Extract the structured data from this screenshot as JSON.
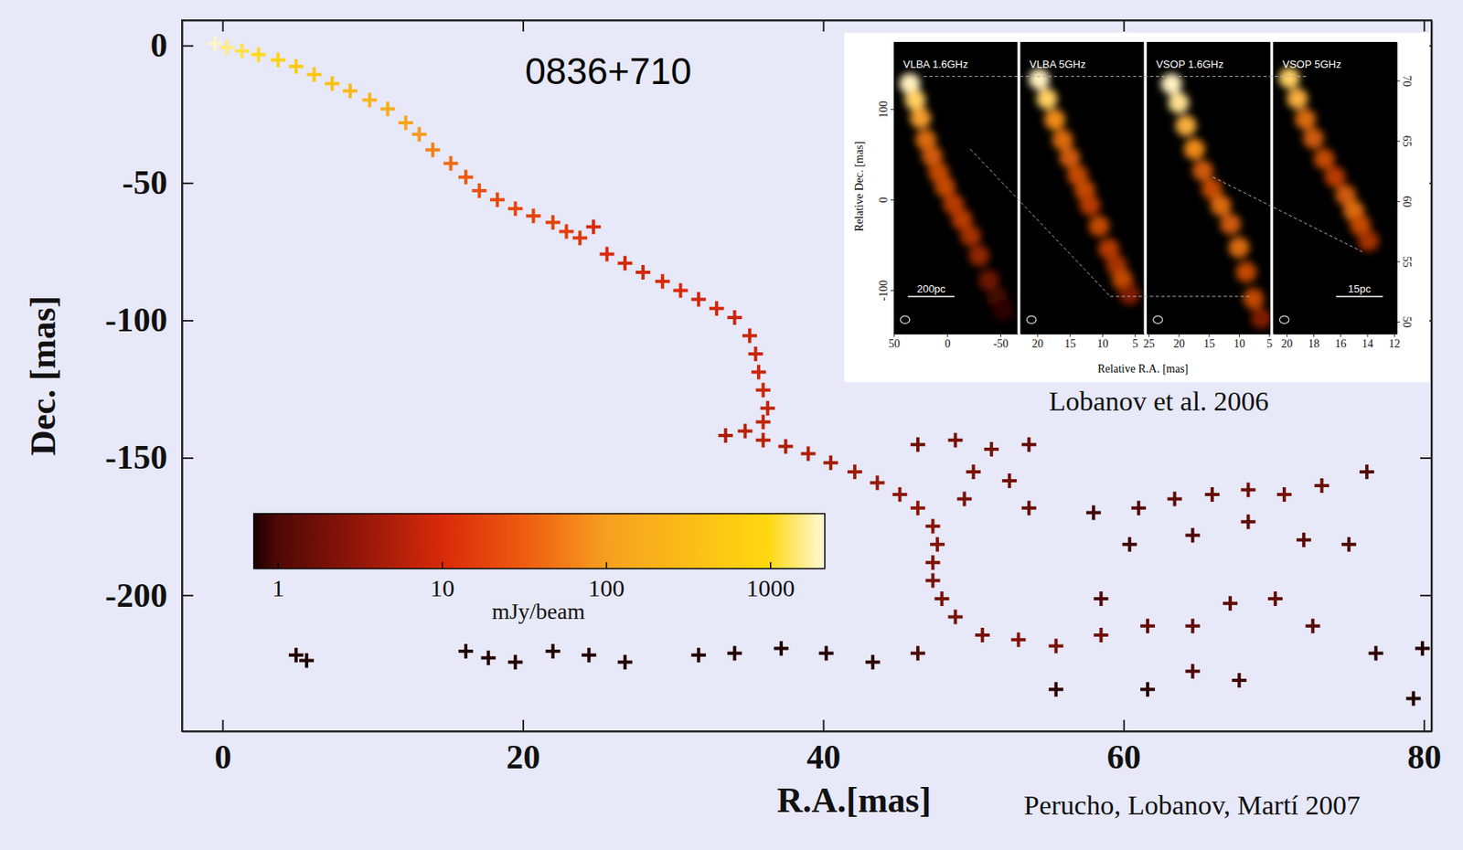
{
  "chart_data": [
    {
      "type": "scatter",
      "title": "0836+710",
      "x_label": "R.A.[mas]",
      "y_label": "Dec. [mas]",
      "marker": "plus",
      "xlim": [
        -2.7,
        80.5
      ],
      "xticks": [
        0,
        20,
        40,
        60,
        80
      ],
      "ylim": [
        -249.5,
        9.2
      ],
      "yticks": [
        0,
        -50,
        -100,
        -150,
        -200
      ],
      "x": [
        -0.5,
        0.3,
        1.3,
        2.4,
        3.7,
        4.9,
        6.1,
        7.3,
        8.5,
        9.8,
        11,
        12.2,
        13.1,
        14,
        15.2,
        16.2,
        17.1,
        18.3,
        19.5,
        20.7,
        22,
        22.9,
        23.8,
        24.7,
        25.6,
        26.8,
        28,
        29.3,
        30.5,
        31.7,
        32.9,
        34.1,
        35.1,
        35.5,
        35.7,
        36,
        36.3,
        36,
        34.8,
        33.5,
        36,
        37.5,
        39,
        40.5,
        42.1,
        43.6,
        45.1,
        46.3,
        47.3,
        47.6,
        47.3,
        47.3,
        47.9,
        48.8,
        46.3,
        48.8,
        51.2,
        53.7,
        50,
        52.4,
        49.4,
        53.7,
        58,
        60.4,
        61,
        63.4,
        65.9,
        68.3,
        70.7,
        73.2,
        76.2,
        64.6,
        68.3,
        72,
        75,
        50.6,
        53,
        55.5,
        58.5,
        61.6,
        64.6,
        67.1,
        70.1,
        72.6,
        58.5,
        64.6,
        61.6,
        67.7,
        55.5,
        46.3,
        43.3,
        40.2,
        37.2,
        34.1,
        31.7,
        76.8,
        79.9,
        79.3,
        4.9,
        5.6,
        16.2,
        17.7,
        19.5,
        22,
        24.4,
        26.8
      ],
      "values": [
        0.7,
        -0.7,
        -2,
        -3.3,
        -5.3,
        -7.6,
        -10.6,
        -13.9,
        -16.5,
        -19.8,
        -23.1,
        -28.1,
        -32.3,
        -38,
        -42.9,
        -47.9,
        -52.8,
        -56.1,
        -59.4,
        -62,
        -64.4,
        -67.7,
        -70,
        -66,
        -75.9,
        -79.2,
        -82.5,
        -85.8,
        -89.1,
        -92.4,
        -95.7,
        -99,
        -105.6,
        -112.2,
        -118.8,
        -125.4,
        -132,
        -137,
        -140.3,
        -141.9,
        -143.6,
        -145.9,
        -148.5,
        -151.8,
        -155.1,
        -159.1,
        -163.4,
        -168.3,
        -174.9,
        -181.5,
        -188.1,
        -194.7,
        -201.3,
        -207.9,
        -145.2,
        -143.6,
        -146.9,
        -145.2,
        -155.1,
        -158.4,
        -165,
        -168.3,
        -170,
        -181.5,
        -168.3,
        -165,
        -163.4,
        -161.7,
        -163.4,
        -160.1,
        -155.1,
        -178.2,
        -173.3,
        -179.9,
        -181.5,
        -214.5,
        -216.2,
        -218.5,
        -214.5,
        -211.2,
        -211.2,
        -203,
        -201.3,
        -211.2,
        -201.3,
        -227.7,
        -234.3,
        -231,
        -234.3,
        -221.1,
        -224.4,
        -221.1,
        -219.4,
        -221.1,
        -221.8,
        -221.1,
        -219.4,
        -237.6,
        -221.8,
        -223.8,
        -220.4,
        -222.8,
        -224.4,
        -220.4,
        -221.8,
        -224.4
      ],
      "flux": [
        2000,
        1500,
        1200,
        1000,
        800,
        600,
        450,
        350,
        280,
        220,
        170,
        120,
        90,
        60,
        40,
        30,
        25,
        22,
        20,
        18,
        18,
        16,
        14,
        10,
        10,
        9,
        9,
        10,
        10,
        9,
        9,
        8,
        8,
        8,
        8,
        8,
        7,
        7,
        6,
        5,
        6,
        5,
        5,
        4,
        4,
        3.5,
        3,
        3,
        2.5,
        2.5,
        2.2,
        2,
        2,
        2,
        1.8,
        2,
        2,
        1.5,
        2.2,
        1.8,
        2,
        1.5,
        0.9,
        0.9,
        1.1,
        1.3,
        1.5,
        1.8,
        2,
        1.6,
        1.1,
        1,
        1.4,
        1.2,
        1,
        2,
        2.5,
        2.2,
        1.8,
        1.5,
        1.3,
        1.2,
        1.5,
        1.2,
        1,
        1,
        0.8,
        0.9,
        0.8,
        1,
        0.8,
        0.75,
        0.75,
        0.75,
        0.75,
        0.8,
        0.75,
        0.75,
        0.75,
        0.75,
        0.75,
        0.75,
        0.75,
        0.75,
        0.75,
        0.75
      ],
      "colorbar": {
        "label": "mJy/beam",
        "lim": [
          0.71,
          2140
        ],
        "ticks": [
          1,
          10,
          100,
          1000
        ],
        "log": true
      },
      "annotations": [
        "Perucho, Lobanov, Martí 2007"
      ]
    },
    {
      "type": "image",
      "x_label": "Relative R.A. [mas]",
      "y_label": "Relative Dec. [mas]",
      "annotations": [
        "Lobanov et al. 2006"
      ],
      "panels": [
        {
          "title": "VLBA 1.6GHz",
          "xlim": [
            50,
            -66
          ],
          "xticks": [
            50,
            0,
            -50
          ],
          "ylim": [
            -148,
            174
          ],
          "yticks": [
            100,
            0,
            -100
          ],
          "scale_bar": "200pc",
          "x": [
            35,
            30,
            25,
            20,
            14,
            8,
            2,
            -6,
            -14,
            -22,
            -30,
            -39,
            -47,
            -53
          ],
          "y": [
            128,
            110,
            90,
            66,
            48,
            30,
            14,
            -5,
            -22,
            -40,
            -62,
            -89,
            -108,
            -122
          ],
          "values": [
            1,
            0.9,
            0.75,
            0.6,
            0.55,
            0.5,
            0.5,
            0.45,
            0.45,
            0.4,
            0.35,
            0.25,
            0.15,
            0.1
          ]
        },
        {
          "title": "VLBA 5GHz",
          "xlim": [
            22.6,
            3.6
          ],
          "xticks": [
            20,
            15,
            10,
            5
          ],
          "ylim": [
            -20,
            24.7
          ],
          "x": [
            19.7,
            18.5,
            17.3,
            16.1,
            15,
            13.8,
            12.7,
            11.9,
            10.5,
            9,
            7.8,
            6.9,
            5.8
          ],
          "y": [
            19,
            16,
            12.8,
            9.7,
            7,
            4.3,
            2,
            -0.3,
            -3.5,
            -7,
            -9.5,
            -11.7,
            -14
          ],
          "values": [
            1,
            0.9,
            0.7,
            0.6,
            0.55,
            0.5,
            0.5,
            0.45,
            0.5,
            0.45,
            0.4,
            0.5,
            0.3
          ]
        },
        {
          "title": "VSOP 1.6GHz",
          "xlim": [
            25.3,
            4.8
          ],
          "xticks": [
            25,
            20,
            15,
            10,
            5
          ],
          "ylim": [
            -22,
            25.4
          ],
          "x": [
            21.2,
            20,
            18.8,
            17.4,
            16,
            14.5,
            13,
            11.4,
            10,
            8.8,
            7.6,
            6.3
          ],
          "y": [
            18.6,
            15.5,
            11.8,
            8,
            4.5,
            1.5,
            -1.2,
            -4.2,
            -8,
            -12,
            -16.3,
            -19.5
          ],
          "values": [
            1,
            0.95,
            0.8,
            0.7,
            0.55,
            0.5,
            0.6,
            0.55,
            0.6,
            0.5,
            0.5,
            0.3
          ]
        },
        {
          "title": "VSOP 5GHz",
          "xlim": [
            21,
            11.8
          ],
          "xticks": [
            20,
            18,
            16,
            14,
            12
          ],
          "ylim": [
            49,
            73.2
          ],
          "yticks": [
            70,
            65,
            60,
            55,
            50
          ],
          "scale_bar": "15pc",
          "x": [
            19.8,
            19.2,
            18.6,
            18,
            17.2,
            16.4,
            15.6,
            15,
            14.5,
            13.9
          ],
          "y": [
            70.2,
            68.5,
            66.8,
            65.2,
            63.5,
            62,
            60.5,
            59.2,
            58,
            56.7
          ],
          "values": [
            0.9,
            0.8,
            0.6,
            0.55,
            0.5,
            0.45,
            0.55,
            0.6,
            0.5,
            0.4
          ]
        }
      ]
    }
  ]
}
